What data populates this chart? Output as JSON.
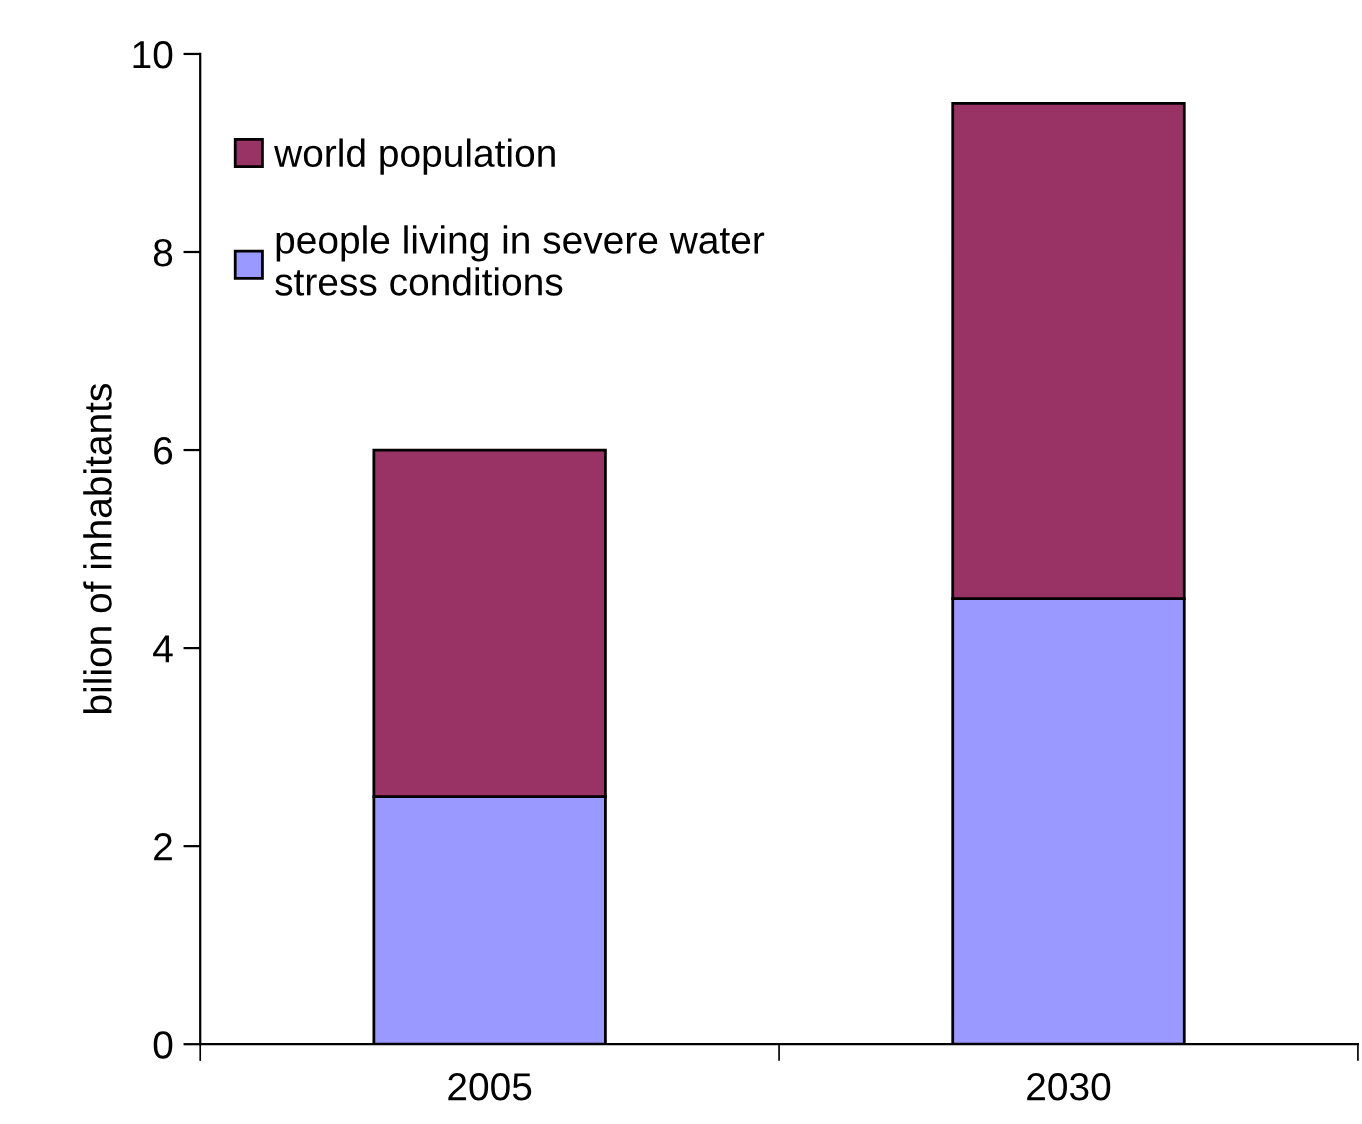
{
  "chart_data": {
    "type": "bar",
    "ylabel": "bilion of inhabitants",
    "categories": [
      "2005",
      "2030"
    ],
    "series": [
      {
        "name": "people living in severe water\nstress conditions",
        "color": "#9999ff",
        "values": [
          2.5,
          4.5
        ]
      },
      {
        "name": "world population",
        "color": "#993366",
        "values": [
          3.5,
          5.0
        ]
      }
    ],
    "stacked": true,
    "ylim": [
      0,
      10
    ],
    "yticks": [
      0,
      2,
      4,
      6,
      8,
      10
    ],
    "grid": false,
    "legend": "top left"
  }
}
